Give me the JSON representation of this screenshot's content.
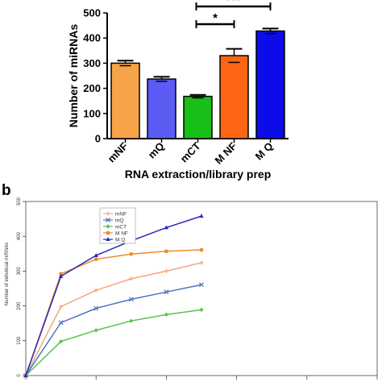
{
  "panel_b_label": "b",
  "chart_data": [
    {
      "type": "bar",
      "title": "",
      "ylabel": "Number of miRNAs",
      "xlabel": "RNA extraction/library prep",
      "ylim": [
        0,
        500
      ],
      "yticks": [
        0,
        100,
        200,
        300,
        400,
        500
      ],
      "categories": [
        "mNF",
        "mQ",
        "mCT",
        "M NF",
        "M Q"
      ],
      "values": [
        300,
        237,
        168,
        330,
        428
      ],
      "errors": [
        10,
        9,
        6,
        27,
        10
      ],
      "colors": [
        "#f7a448",
        "#5c5cf4",
        "#16c016",
        "#fb6514",
        "#0b0ce7"
      ],
      "significance": [
        {
          "from": "mCT",
          "to": "M NF",
          "label": "*"
        },
        {
          "from": "mCT",
          "to": "M Q",
          "label": "***"
        }
      ],
      "grid": false
    },
    {
      "type": "line",
      "title": "",
      "ylabel": "Number of individual miRNAs",
      "xlabel": "",
      "ylim": [
        0,
        500
      ],
      "yticks": [
        0,
        100,
        200,
        300,
        400,
        500
      ],
      "xlim": [
        0,
        5
      ],
      "x": [
        0,
        0.5,
        1,
        1.5,
        2,
        2.5,
        3
      ],
      "legend_position": "top-left",
      "series": [
        {
          "name": "mNF",
          "color": "#f5a77a",
          "marker": "plus",
          "values": [
            0,
            198,
            245,
            278,
            300,
            324,
            null
          ]
        },
        {
          "name": "mQ",
          "color": "#4a74c4",
          "marker": "cross",
          "values": [
            0,
            152,
            193,
            219,
            240,
            261,
            null
          ]
        },
        {
          "name": "mCT",
          "color": "#58c24a",
          "marker": "diamond",
          "values": [
            0,
            98,
            130,
            157,
            175,
            189,
            null
          ]
        },
        {
          "name": "M NF",
          "color": "#ef8a2a",
          "marker": "circle",
          "values": [
            0,
            292,
            334,
            349,
            357,
            361,
            null
          ]
        },
        {
          "name": "M Q",
          "color": "#2a28b6",
          "marker": "triangle",
          "values": [
            0,
            285,
            345,
            387,
            425,
            458,
            null
          ]
        }
      ]
    }
  ]
}
